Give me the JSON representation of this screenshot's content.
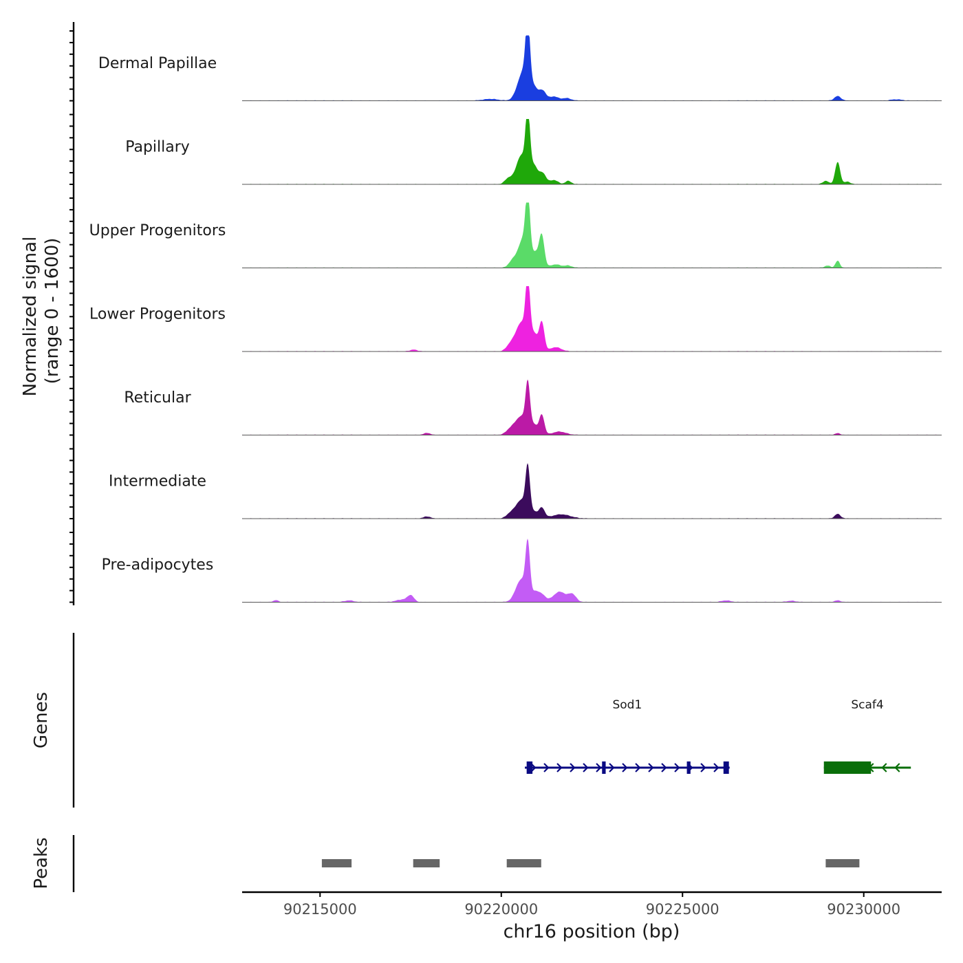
{
  "chart_data": {
    "type": "area",
    "title": "",
    "region": "chr16",
    "xlabel": "chr16 position (bp)",
    "xlim": [
      90212850,
      90232150
    ],
    "xticks": [
      90215000,
      90220000,
      90225000,
      90230000
    ],
    "xtick_labels": [
      "90215000",
      "90220000",
      "90225000",
      "90230000"
    ],
    "ylabel_line1": "Normalized signal",
    "ylabel_line2": "(range 0 - 1600)",
    "ylim": [
      0,
      1600
    ],
    "tracks": [
      {
        "name": "Dermal Papillae",
        "color": "#1a3ee0",
        "peaks": [
          {
            "pos": 90220730,
            "height": 1500,
            "width": 60
          },
          {
            "pos": 90220600,
            "height": 700,
            "width": 150
          },
          {
            "pos": 90220900,
            "height": 300,
            "width": 120
          },
          {
            "pos": 90221150,
            "height": 220,
            "width": 90
          },
          {
            "pos": 90221450,
            "height": 100,
            "width": 120
          },
          {
            "pos": 90221800,
            "height": 60,
            "width": 120
          },
          {
            "pos": 90219700,
            "height": 40,
            "width": 200
          },
          {
            "pos": 90229280,
            "height": 110,
            "width": 90
          },
          {
            "pos": 90230900,
            "height": 30,
            "width": 150
          }
        ]
      },
      {
        "name": "Papillary",
        "color": "#1fa80a",
        "peaks": [
          {
            "pos": 90220730,
            "height": 1500,
            "width": 60
          },
          {
            "pos": 90220550,
            "height": 700,
            "width": 140
          },
          {
            "pos": 90220900,
            "height": 450,
            "width": 110
          },
          {
            "pos": 90221150,
            "height": 250,
            "width": 90
          },
          {
            "pos": 90221450,
            "height": 100,
            "width": 110
          },
          {
            "pos": 90221850,
            "height": 80,
            "width": 80
          },
          {
            "pos": 90220200,
            "height": 140,
            "width": 100
          },
          {
            "pos": 90229280,
            "height": 540,
            "width": 70
          },
          {
            "pos": 90228950,
            "height": 80,
            "width": 80
          },
          {
            "pos": 90229550,
            "height": 60,
            "width": 80
          }
        ]
      },
      {
        "name": "Upper Progenitors",
        "color": "#5adb68",
        "peaks": [
          {
            "pos": 90220730,
            "height": 1450,
            "width": 60
          },
          {
            "pos": 90220600,
            "height": 700,
            "width": 140
          },
          {
            "pos": 90221120,
            "height": 700,
            "width": 70
          },
          {
            "pos": 90220950,
            "height": 350,
            "width": 120
          },
          {
            "pos": 90220300,
            "height": 150,
            "width": 100
          },
          {
            "pos": 90221500,
            "height": 80,
            "width": 150
          },
          {
            "pos": 90221850,
            "height": 50,
            "width": 100
          },
          {
            "pos": 90229280,
            "height": 170,
            "width": 60
          },
          {
            "pos": 90229000,
            "height": 50,
            "width": 80
          }
        ]
      },
      {
        "name": "Lower Progenitors",
        "color": "#ee22e0",
        "peaks": [
          {
            "pos": 90220730,
            "height": 1450,
            "width": 60
          },
          {
            "pos": 90220550,
            "height": 700,
            "width": 150
          },
          {
            "pos": 90221120,
            "height": 680,
            "width": 70
          },
          {
            "pos": 90220900,
            "height": 420,
            "width": 110
          },
          {
            "pos": 90221500,
            "height": 100,
            "width": 150
          },
          {
            "pos": 90220250,
            "height": 150,
            "width": 110
          },
          {
            "pos": 90217580,
            "height": 40,
            "width": 100
          }
        ]
      },
      {
        "name": "Reticular",
        "color": "#bb1aa6",
        "peaks": [
          {
            "pos": 90220730,
            "height": 1050,
            "width": 60
          },
          {
            "pos": 90220550,
            "height": 450,
            "width": 160
          },
          {
            "pos": 90221120,
            "height": 470,
            "width": 70
          },
          {
            "pos": 90220900,
            "height": 230,
            "width": 110
          },
          {
            "pos": 90221600,
            "height": 80,
            "width": 180
          },
          {
            "pos": 90220250,
            "height": 120,
            "width": 120
          },
          {
            "pos": 90217950,
            "height": 50,
            "width": 80
          },
          {
            "pos": 90229280,
            "height": 40,
            "width": 70
          }
        ]
      },
      {
        "name": "Intermediate",
        "color": "#3b0b5c",
        "peaks": [
          {
            "pos": 90220730,
            "height": 1100,
            "width": 60
          },
          {
            "pos": 90220550,
            "height": 450,
            "width": 150
          },
          {
            "pos": 90221120,
            "height": 250,
            "width": 80
          },
          {
            "pos": 90220900,
            "height": 150,
            "width": 100
          },
          {
            "pos": 90221650,
            "height": 100,
            "width": 250
          },
          {
            "pos": 90220250,
            "height": 110,
            "width": 110
          },
          {
            "pos": 90217950,
            "height": 50,
            "width": 90
          },
          {
            "pos": 90229280,
            "height": 110,
            "width": 80
          }
        ]
      },
      {
        "name": "Pre-adipocytes",
        "color": "#c35cf5",
        "peaks": [
          {
            "pos": 90220730,
            "height": 1250,
            "width": 60
          },
          {
            "pos": 90220550,
            "height": 550,
            "width": 150
          },
          {
            "pos": 90220950,
            "height": 250,
            "width": 110
          },
          {
            "pos": 90221150,
            "height": 140,
            "width": 90
          },
          {
            "pos": 90221650,
            "height": 220,
            "width": 130
          },
          {
            "pos": 90221950,
            "height": 200,
            "width": 110
          },
          {
            "pos": 90221450,
            "height": 100,
            "width": 120
          },
          {
            "pos": 90217500,
            "height": 160,
            "width": 90
          },
          {
            "pos": 90217250,
            "height": 60,
            "width": 150
          },
          {
            "pos": 90213780,
            "height": 50,
            "width": 60
          },
          {
            "pos": 90215800,
            "height": 40,
            "width": 120
          },
          {
            "pos": 90226200,
            "height": 40,
            "width": 120
          },
          {
            "pos": 90228000,
            "height": 30,
            "width": 120
          },
          {
            "pos": 90229280,
            "height": 40,
            "width": 80
          }
        ]
      }
    ],
    "genes_label": "Genes",
    "genes": [
      {
        "name": "Sod1",
        "strand": "+",
        "color": "#0a0a82",
        "start": 90220650,
        "end": 90226300,
        "exons": [
          [
            90220700,
            90220860
          ],
          [
            90222780,
            90222880
          ],
          [
            90225120,
            90225220
          ],
          [
            90226130,
            90226280
          ]
        ]
      },
      {
        "name": "Scaf4",
        "strand": "-",
        "color": "#0a6e0a",
        "start": 90228900,
        "end": 90231300,
        "exons": [
          [
            90228900,
            90230200
          ]
        ]
      }
    ],
    "peaks_label": "Peaks",
    "peak_regions": [
      [
        90215050,
        90215870
      ],
      [
        90217570,
        90218300
      ],
      [
        90220150,
        90221100
      ],
      [
        90228950,
        90229880
      ]
    ],
    "peak_color": "#666666"
  }
}
